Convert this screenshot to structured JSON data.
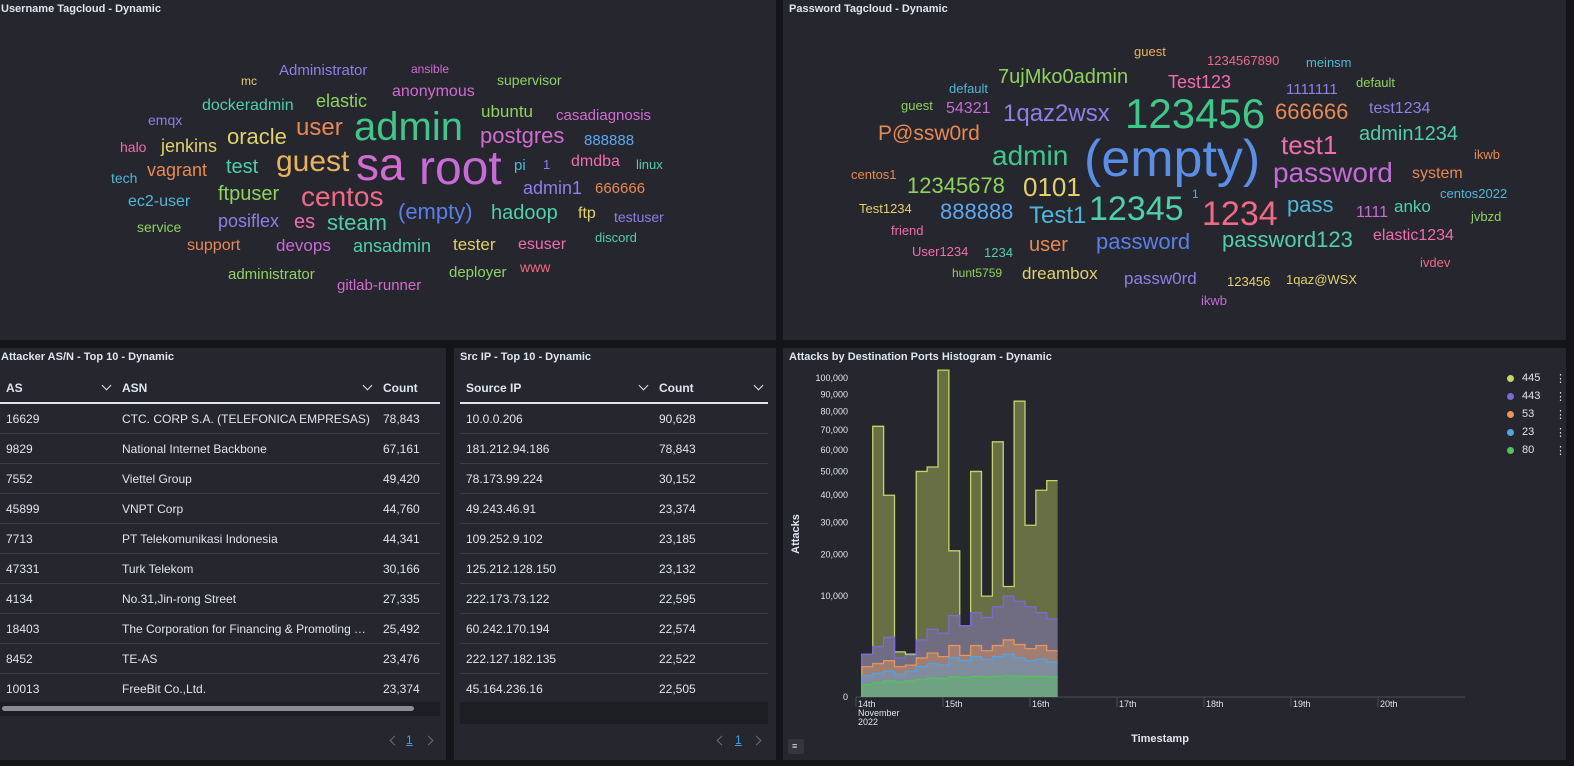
{
  "panels": {
    "username": {
      "title": "Username Tagcloud - Dynamic"
    },
    "password": {
      "title": "Password Tagcloud - Dynamic"
    },
    "asn": {
      "title": "Attacker AS/N - Top 10 - Dynamic"
    },
    "srcip": {
      "title": "Src IP - Top 10 - Dynamic"
    },
    "ports": {
      "title": "Attacks by Destination Ports Histogram - Dynamic"
    }
  },
  "username_words": [
    {
      "t": "Administrator",
      "c": "#8f7fe8",
      "s": 15
    },
    {
      "t": "ansible",
      "c": "#d36cd0",
      "s": 12
    },
    {
      "t": "mc",
      "c": "#e2d06a",
      "s": 12
    },
    {
      "t": "supervisor",
      "c": "#8ed45c",
      "s": 14
    },
    {
      "t": "anonymous",
      "c": "#d36cd0",
      "s": 16
    },
    {
      "t": "dockeradmin",
      "c": "#4fd1a7",
      "s": 16
    },
    {
      "t": "elastic",
      "c": "#8ed45c",
      "s": 18
    },
    {
      "t": "ubuntu",
      "c": "#8ed45c",
      "s": 17
    },
    {
      "t": "emqx",
      "c": "#8f7fe8",
      "s": 14
    },
    {
      "t": "admin",
      "c": "#3ec98a",
      "s": 40
    },
    {
      "t": "casadiagnosis",
      "c": "#d36cd0",
      "s": 15
    },
    {
      "t": "user",
      "c": "#e88952",
      "s": 24
    },
    {
      "t": "oracle",
      "c": "#e2d06a",
      "s": 22
    },
    {
      "t": "postgres",
      "c": "#d36cd0",
      "s": 22
    },
    {
      "t": "halo",
      "c": "#f06eb0",
      "s": 14
    },
    {
      "t": "jenkins",
      "c": "#e2d06a",
      "s": 18
    },
    {
      "t": "888888",
      "c": "#5aa8f0",
      "s": 15
    },
    {
      "t": "sa",
      "c": "#d36cd0",
      "s": 46
    },
    {
      "t": "root",
      "c": "#c86ad8",
      "s": 48
    },
    {
      "t": "guest",
      "c": "#e8b35a",
      "s": 30
    },
    {
      "t": "test",
      "c": "#4fd1a7",
      "s": 20
    },
    {
      "t": "vagrant",
      "c": "#e88952",
      "s": 18
    },
    {
      "t": "pi",
      "c": "#4fb8d8",
      "s": 15
    },
    {
      "t": "1",
      "c": "#8f7fe8",
      "s": 13
    },
    {
      "t": "dmdba",
      "c": "#f06eb0",
      "s": 16
    },
    {
      "t": "linux",
      "c": "#4fd1a7",
      "s": 13
    },
    {
      "t": "tech",
      "c": "#4fb8d8",
      "s": 14
    },
    {
      "t": "centos",
      "c": "#f06a86",
      "s": 28
    },
    {
      "t": "ftpuser",
      "c": "#8ed45c",
      "s": 20
    },
    {
      "t": "admin1",
      "c": "#8f7fe8",
      "s": 18
    },
    {
      "t": "666666",
      "c": "#e88952",
      "s": 15
    },
    {
      "t": "ec2-user",
      "c": "#4fb8d8",
      "s": 16
    },
    {
      "t": "posiflex",
      "c": "#8f7fe8",
      "s": 18
    },
    {
      "t": "es",
      "c": "#f06eb0",
      "s": 20
    },
    {
      "t": "steam",
      "c": "#4fd1a7",
      "s": 22
    },
    {
      "t": "(empty)",
      "c": "#5a7fe8",
      "s": 22
    },
    {
      "t": "hadoop",
      "c": "#4fd1a7",
      "s": 20
    },
    {
      "t": "ftp",
      "c": "#e2d06a",
      "s": 16
    },
    {
      "t": "testuser",
      "c": "#8f7fe8",
      "s": 14
    },
    {
      "t": "service",
      "c": "#8ed45c",
      "s": 14
    },
    {
      "t": "support",
      "c": "#e88952",
      "s": 16
    },
    {
      "t": "devops",
      "c": "#c86ad8",
      "s": 17
    },
    {
      "t": "ansadmin",
      "c": "#4fd1a7",
      "s": 18
    },
    {
      "t": "tester",
      "c": "#e2d06a",
      "s": 17
    },
    {
      "t": "esuser",
      "c": "#f06eb0",
      "s": 16
    },
    {
      "t": "discord",
      "c": "#4fd1a7",
      "s": 13
    },
    {
      "t": "administrator",
      "c": "#8ed45c",
      "s": 15
    },
    {
      "t": "gitlab-runner",
      "c": "#d36cd0",
      "s": 15
    },
    {
      "t": "deployer",
      "c": "#8ed45c",
      "s": 15
    },
    {
      "t": "www",
      "c": "#f06a86",
      "s": 14
    }
  ],
  "password_words": [
    {
      "t": "guest",
      "c": "#e8b35a",
      "s": 13
    },
    {
      "t": "1234567890",
      "c": "#f06a86",
      "s": 13
    },
    {
      "t": "meinsm",
      "c": "#4fb8d8",
      "s": 13
    },
    {
      "t": "7ujMko0admin",
      "c": "#8ed45c",
      "s": 20
    },
    {
      "t": "Test123",
      "c": "#f06eb0",
      "s": 18
    },
    {
      "t": "default",
      "c": "#4fb8d8",
      "s": 13
    },
    {
      "t": "1111111",
      "c": "#8f7fe8",
      "s": 15
    },
    {
      "t": "default",
      "c": "#8ed45c",
      "s": 13
    },
    {
      "t": "guest",
      "c": "#8ed45c",
      "s": 13
    },
    {
      "t": "54321",
      "c": "#c86ad8",
      "s": 16
    },
    {
      "t": "1qaz2wsx",
      "c": "#8f7fe8",
      "s": 24
    },
    {
      "t": "123456",
      "c": "#3ec98a",
      "s": 42
    },
    {
      "t": "666666",
      "c": "#e88952",
      "s": 22
    },
    {
      "t": "test1234",
      "c": "#8f7fe8",
      "s": 16
    },
    {
      "t": "P@ssw0rd",
      "c": "#e88952",
      "s": 21
    },
    {
      "t": "admin1234",
      "c": "#4fd1a7",
      "s": 20
    },
    {
      "t": "test1",
      "c": "#f06eb0",
      "s": 26
    },
    {
      "t": "ikwb",
      "c": "#e88952",
      "s": 13
    },
    {
      "t": "admin",
      "c": "#3ec98a",
      "s": 28
    },
    {
      "t": "(empty)",
      "c": "#5a8fe8",
      "s": 52
    },
    {
      "t": "password",
      "c": "#c86ad8",
      "s": 28
    },
    {
      "t": "system",
      "c": "#e88952",
      "s": 16
    },
    {
      "t": "centos1",
      "c": "#e88952",
      "s": 13
    },
    {
      "t": "12345678",
      "c": "#8ed45c",
      "s": 22
    },
    {
      "t": "0101",
      "c": "#e2d06a",
      "s": 26
    },
    {
      "t": "centos2022",
      "c": "#4fb8d8",
      "s": 13
    },
    {
      "t": "1",
      "c": "#5aa8f0",
      "s": 12
    },
    {
      "t": "Test1234",
      "c": "#e2d06a",
      "s": 13
    },
    {
      "t": "888888",
      "c": "#5aa8f0",
      "s": 22
    },
    {
      "t": "Test1",
      "c": "#4fb8d8",
      "s": 24
    },
    {
      "t": "12345",
      "c": "#4fd1a7",
      "s": 34
    },
    {
      "t": "1234",
      "c": "#f06a86",
      "s": 34
    },
    {
      "t": "pass",
      "c": "#4fb8d8",
      "s": 22
    },
    {
      "t": "1111",
      "c": "#c86ad8",
      "s": 16
    },
    {
      "t": "anko",
      "c": "#4fd1a7",
      "s": 17
    },
    {
      "t": "jvbzd",
      "c": "#8ed45c",
      "s": 13
    },
    {
      "t": "friend",
      "c": "#f06eb0",
      "s": 13
    },
    {
      "t": "elastic1234",
      "c": "#f06eb0",
      "s": 16
    },
    {
      "t": "user",
      "c": "#e88952",
      "s": 20
    },
    {
      "t": "password",
      "c": "#5a7fe8",
      "s": 22
    },
    {
      "t": "password123",
      "c": "#4fd1a7",
      "s": 22
    },
    {
      "t": "User1234",
      "c": "#f06eb0",
      "s": 13
    },
    {
      "t": "1234",
      "c": "#4fd1a7",
      "s": 13
    },
    {
      "t": "ivdev",
      "c": "#f06a86",
      "s": 13
    },
    {
      "t": "hunt5759",
      "c": "#8ed45c",
      "s": 12
    },
    {
      "t": "dreambox",
      "c": "#e2d06a",
      "s": 17
    },
    {
      "t": "passw0rd",
      "c": "#8f7fe8",
      "s": 17
    },
    {
      "t": "123456",
      "c": "#e2d06a",
      "s": 13
    },
    {
      "t": "1qaz@WSX",
      "c": "#e2d06a",
      "s": 13
    },
    {
      "t": "ikwb",
      "c": "#c86ad8",
      "s": 13
    }
  ],
  "asn_table": {
    "headers": [
      "AS",
      "ASN",
      "Count"
    ],
    "rows": [
      [
        "16629",
        "CTC. CORP S.A. (TELEFONICA EMPRESAS)",
        "78,843"
      ],
      [
        "9829",
        "National Internet Backbone",
        "67,161"
      ],
      [
        "7552",
        "Viettel Group",
        "49,420"
      ],
      [
        "45899",
        "VNPT Corp",
        "44,760"
      ],
      [
        "7713",
        "PT Telekomunikasi Indonesia",
        "44,341"
      ],
      [
        "47331",
        "Turk Telekom",
        "30,166"
      ],
      [
        "4134",
        "No.31,Jin-rong Street",
        "27,335"
      ],
      [
        "18403",
        "The Corporation for Financing & Promoting Technology",
        "25,492"
      ],
      [
        "8452",
        "TE-AS",
        "23,476"
      ],
      [
        "10013",
        "FreeBit Co.,Ltd.",
        "23,374"
      ]
    ],
    "page": "1"
  },
  "src_table": {
    "headers": [
      "Source IP",
      "Count"
    ],
    "rows": [
      [
        "10.0.0.206",
        "90,628"
      ],
      [
        "181.212.94.186",
        "78,843"
      ],
      [
        "78.173.99.224",
        "30,152"
      ],
      [
        "49.243.46.91",
        "23,374"
      ],
      [
        "109.252.9.102",
        "23,185"
      ],
      [
        "125.212.128.150",
        "23,132"
      ],
      [
        "222.173.73.122",
        "22,595"
      ],
      [
        "60.242.170.194",
        "22,574"
      ],
      [
        "222.127.182.135",
        "22,522"
      ],
      [
        "45.164.236.16",
        "22,505"
      ]
    ],
    "page": "1"
  },
  "chart_data": {
    "type": "area",
    "title": "Attacks by Destination Ports Histogram - Dynamic",
    "xlabel": "Timestamp",
    "ylabel": "Attacks",
    "y_scale": "sqrt",
    "ylim": [
      0,
      100000
    ],
    "yticks": [
      0,
      10000,
      20000,
      30000,
      40000,
      50000,
      60000,
      70000,
      80000,
      90000,
      100000
    ],
    "ytick_labels": [
      "0",
      "10,000",
      "20,000",
      "30,000",
      "40,000",
      "50,000",
      "60,000",
      "70,000",
      "80,000",
      "90,000",
      "100,000"
    ],
    "xlim": [
      "2022-11-14",
      "2022-11-21"
    ],
    "xtick_labels": [
      "14th",
      "15th",
      "16th",
      "17th",
      "18th",
      "19th",
      "20th"
    ],
    "xtick_sublabel": [
      "November",
      "2022"
    ],
    "legend_position": "top-right",
    "bin_hours": 3,
    "start": "2022-11-14 03:00",
    "series": [
      {
        "name": "445",
        "color": "#c5d563",
        "values": [
          1800,
          72000,
          40000,
          2000,
          1800,
          50000,
          52000,
          105000,
          21000,
          5000,
          50000,
          10000,
          64000,
          12000,
          86000,
          29000,
          42000,
          46000
        ]
      },
      {
        "name": "443",
        "color": "#7b6ad6",
        "values": [
          1800,
          2500,
          3500,
          1500,
          1700,
          3200,
          4500,
          4000,
          6500,
          5000,
          7000,
          6200,
          8000,
          10000,
          9000,
          8000,
          7000,
          6000
        ]
      },
      {
        "name": "53",
        "color": "#e8955a",
        "values": [
          900,
          1100,
          1300,
          900,
          1000,
          1500,
          1900,
          1600,
          2600,
          1700,
          2600,
          2100,
          2600,
          3200,
          2700,
          2300,
          2600,
          2100
        ]
      },
      {
        "name": "23",
        "color": "#54a3e0",
        "values": [
          450,
          550,
          650,
          500,
          650,
          900,
          1100,
          1000,
          1500,
          1300,
          1600,
          1400,
          1600,
          1800,
          1500,
          1300,
          1400,
          1200
        ]
      },
      {
        "name": "80",
        "color": "#53c25a",
        "values": [
          150,
          200,
          250,
          220,
          250,
          300,
          350,
          330,
          400,
          380,
          420,
          400,
          420,
          450,
          430,
          410,
          420,
          400
        ]
      }
    ]
  }
}
